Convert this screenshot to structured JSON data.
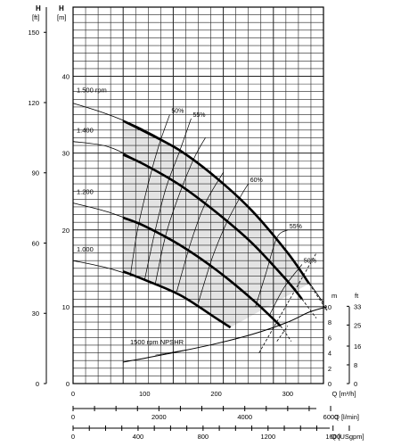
{
  "chart_data": {
    "type": "line",
    "title": "",
    "axes": {
      "left_ft": {
        "label": "H",
        "unit": "[ft]",
        "ticks": [
          0,
          30,
          60,
          90,
          120,
          150
        ]
      },
      "left_m": {
        "label": "H",
        "unit": "[m]",
        "range": [
          0,
          49
        ],
        "ticks": [
          0,
          10,
          20,
          30,
          40
        ]
      },
      "x_m3h": {
        "label": "Q [m³/h]",
        "range": [
          0,
          350
        ],
        "ticks": [
          0,
          100,
          200,
          300
        ]
      },
      "x_lmin": {
        "label": "Q [l/min]",
        "ticks": [
          0,
          2000,
          4000,
          6000
        ]
      },
      "x_usgpm": {
        "label": "Q [USgpm]",
        "ticks": [
          0,
          400,
          800,
          1200,
          1600
        ]
      },
      "npsh_m": {
        "label": "m",
        "range": [
          0,
          10
        ],
        "ticks": [
          0,
          2,
          4,
          6,
          8,
          10
        ]
      },
      "npsh_ft": {
        "label": "ft",
        "ticks": [
          0,
          8,
          16,
          25,
          33
        ]
      }
    },
    "series": [
      {
        "name": "1.500 rpm",
        "full": [
          [
            0,
            36.5
          ],
          [
            50,
            35
          ],
          [
            100,
            33
          ],
          [
            150,
            30.3
          ],
          [
            200,
            26.8
          ],
          [
            250,
            22.5
          ],
          [
            300,
            17
          ],
          [
            350,
            10.5
          ]
        ],
        "thick": [
          [
            70,
            34.2
          ],
          [
            100,
            32.8
          ],
          [
            150,
            30.3
          ],
          [
            200,
            26.8
          ],
          [
            250,
            22.5
          ],
          [
            300,
            17
          ],
          [
            330,
            13
          ]
        ],
        "thin_tail": [
          [
            330,
            13
          ],
          [
            355,
            9.5
          ]
        ]
      },
      {
        "name": "1.400",
        "full": [
          [
            0,
            31.5
          ],
          [
            50,
            30.8
          ],
          [
            100,
            28.5
          ],
          [
            150,
            25.8
          ],
          [
            200,
            22.3
          ],
          [
            250,
            18.3
          ],
          [
            300,
            13.3
          ],
          [
            320,
            11
          ]
        ],
        "thick": [
          [
            70,
            29.8
          ],
          [
            100,
            28.5
          ],
          [
            150,
            25.8
          ],
          [
            200,
            22.3
          ],
          [
            250,
            18.3
          ],
          [
            300,
            13.3
          ],
          [
            320,
            11
          ]
        ],
        "thin_tail": [
          [
            320,
            11
          ],
          [
            340,
            8.5
          ]
        ]
      },
      {
        "name": "1.200",
        "full": [
          [
            0,
            23.5
          ],
          [
            50,
            22.3
          ],
          [
            100,
            20.5
          ],
          [
            150,
            18
          ],
          [
            200,
            14.8
          ],
          [
            250,
            11
          ],
          [
            290,
            7.5
          ]
        ],
        "thick": [
          [
            70,
            21.6
          ],
          [
            100,
            20.5
          ],
          [
            150,
            18
          ],
          [
            200,
            14.8
          ],
          [
            250,
            11
          ],
          [
            290,
            7.5
          ]
        ],
        "thin_tail": [
          [
            290,
            7.5
          ],
          [
            305,
            5.5
          ]
        ]
      },
      {
        "name": "1.000",
        "full": [
          [
            0,
            16
          ],
          [
            50,
            15
          ],
          [
            100,
            13.5
          ],
          [
            150,
            11.5
          ],
          [
            200,
            8.5
          ],
          [
            220,
            7.3
          ]
        ],
        "thick": [
          [
            70,
            14.6
          ],
          [
            100,
            13.5
          ],
          [
            150,
            11.5
          ],
          [
            200,
            8.5
          ],
          [
            220,
            7.3
          ]
        ],
        "thin_tail": []
      }
    ],
    "efficiency_curves": [
      {
        "label": "50%",
        "points": [
          [
            80,
            14
          ],
          [
            90,
            20
          ],
          [
            105,
            26
          ],
          [
            120,
            31
          ],
          [
            135,
            35
          ]
        ]
      },
      {
        "label": "55%",
        "points": [
          [
            100,
            13.5
          ],
          [
            115,
            20
          ],
          [
            130,
            25.5
          ],
          [
            148,
            30
          ],
          [
            165,
            34.5
          ]
        ]
      },
      {
        "label": "",
        "points": [
          [
            115,
            13
          ],
          [
            130,
            19.5
          ],
          [
            150,
            25
          ],
          [
            170,
            29.5
          ],
          [
            185,
            32
          ]
        ]
      },
      {
        "label": "",
        "points": [
          [
            145,
            12
          ],
          [
            165,
            18.5
          ],
          [
            185,
            23.5
          ],
          [
            210,
            27.5
          ]
        ]
      },
      {
        "label": "60%",
        "points": [
          [
            175,
            10.5
          ],
          [
            195,
            16.5
          ],
          [
            215,
            21
          ],
          [
            235,
            24.5
          ],
          [
            245,
            26
          ]
        ]
      },
      {
        "label": "55%",
        "points": [
          [
            255,
            10
          ],
          [
            270,
            14.5
          ],
          [
            285,
            19
          ],
          [
            300,
            20
          ]
        ]
      },
      {
        "label": "50%",
        "points": [
          [
            275,
            9
          ],
          [
            295,
            12.5
          ],
          [
            320,
            15.5
          ]
        ]
      }
    ],
    "npsh_curve": {
      "name": "1500 rpm NPSHR",
      "points": [
        [
          70,
          2.8
        ],
        [
          100,
          3.3
        ],
        [
          150,
          4.2
        ],
        [
          200,
          5.2
        ],
        [
          250,
          6.4
        ],
        [
          300,
          8
        ],
        [
          330,
          9.3
        ],
        [
          355,
          10
        ]
      ]
    },
    "region_fill": "#e3e3e3",
    "grid": true,
    "legend": "none"
  }
}
